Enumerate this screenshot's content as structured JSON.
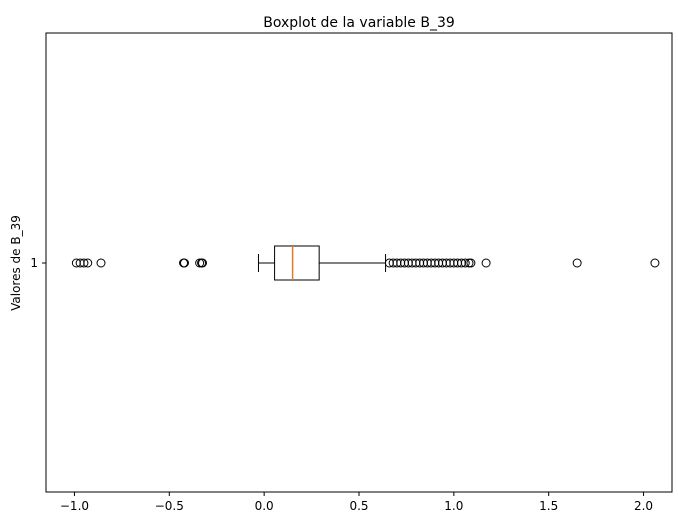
{
  "chart_data": {
    "type": "boxplot",
    "orientation": "horizontal",
    "title": "Boxplot de la variable B_39",
    "xlabel": "",
    "ylabel": "Valores de B_39",
    "xlim": [
      -1.15,
      2.15
    ],
    "xticks": [
      -1.0,
      -0.5,
      0.0,
      0.5,
      1.0,
      1.5,
      2.0
    ],
    "xtick_labels": [
      "−1.0",
      "−0.5",
      "0.0",
      "0.5",
      "1.0",
      "1.5",
      "2.0"
    ],
    "yticks": [
      "1"
    ],
    "grid": false,
    "box": {
      "whisker_low": -0.03,
      "q1": 0.055,
      "median": 0.15,
      "q3": 0.29,
      "whisker_high": 0.64
    },
    "outliers": [
      -0.99,
      -0.97,
      -0.95,
      -0.93,
      -0.86,
      -0.425,
      -0.42,
      -0.34,
      -0.33,
      -0.325,
      0.66,
      0.68,
      0.7,
      0.72,
      0.74,
      0.76,
      0.78,
      0.8,
      0.82,
      0.84,
      0.86,
      0.88,
      0.9,
      0.92,
      0.94,
      0.96,
      0.98,
      1.0,
      1.02,
      1.04,
      1.06,
      1.08,
      1.09,
      1.17,
      1.65,
      2.06
    ],
    "colors": {
      "box": "#000000",
      "median": "#e07b2a",
      "outlier_edge": "#000000"
    }
  }
}
